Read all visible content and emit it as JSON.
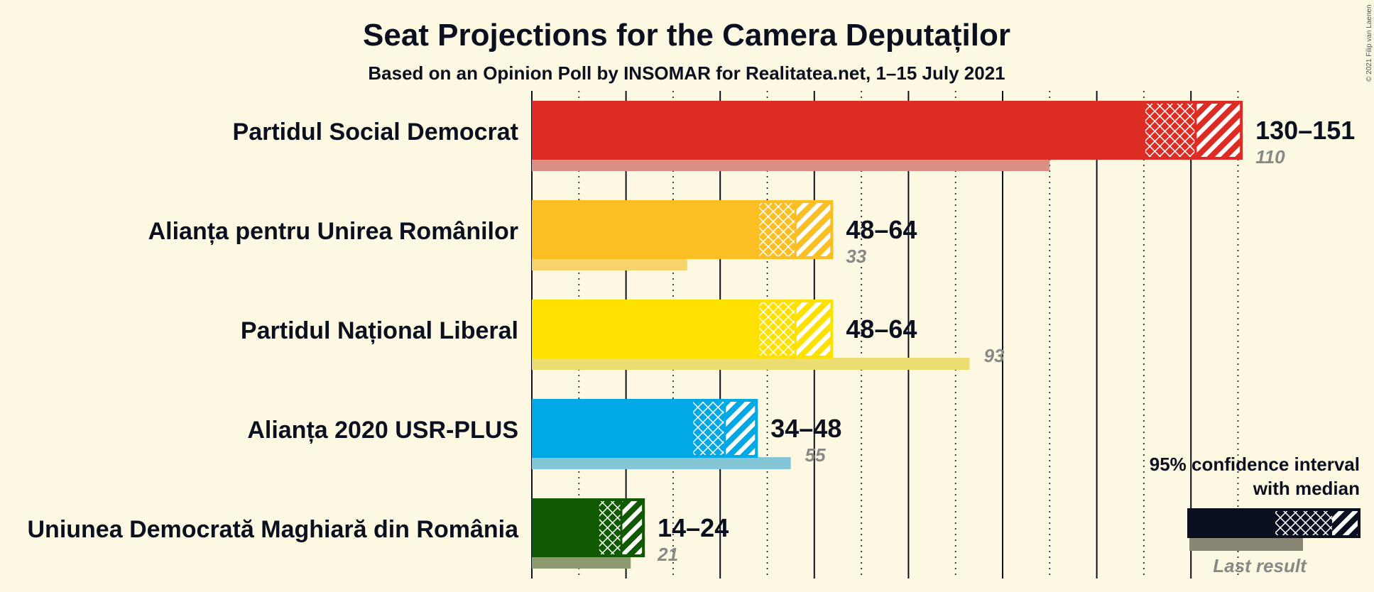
{
  "copyright": "© 2021 Filip van Laenen",
  "chart_data": {
    "type": "bar",
    "orientation": "horizontal",
    "title": "Seat Projections for the Camera Deputaților",
    "subtitle": "Based on an Opinion Poll by INSOMAR for Realitatea.net, 1–15 July 2021",
    "xlim": [
      0,
      151
    ],
    "grid": true,
    "series": [
      {
        "party": "Partidul Social Democrat",
        "low": 130,
        "median": 141,
        "high": 151,
        "range_label": "130–151",
        "last_result": 110,
        "last_label": "110",
        "color": "#dd2c24",
        "last_color": "#dc8f84"
      },
      {
        "party": "Alianța pentru Unirea Românilor",
        "low": 48,
        "median": 56,
        "high": 64,
        "range_label": "48–64",
        "last_result": 33,
        "last_label": "33",
        "color": "#fbbf24",
        "last_color": "#f7d36c"
      },
      {
        "party": "Partidul Național Liberal",
        "low": 48,
        "median": 56,
        "high": 64,
        "range_label": "48–64",
        "last_result": 93,
        "last_label": "93",
        "color": "#ffe100",
        "last_color": "#eadc70"
      },
      {
        "party": "Alianța 2020 USR-PLUS",
        "low": 34,
        "median": 41,
        "high": 48,
        "range_label": "34–48",
        "last_result": 55,
        "last_label": "55",
        "color": "#00a8e6",
        "last_color": "#85c6d6"
      },
      {
        "party": "Uniunea Democrată Maghiară din România",
        "low": 14,
        "median": 19,
        "high": 24,
        "range_label": "14–24",
        "last_result": 21,
        "last_label": "21",
        "color": "#0f5a00",
        "last_color": "#8c9a70"
      }
    ],
    "legend": {
      "line1": "95% confidence interval",
      "line2": "with median",
      "last_result": "Last result",
      "placement": "bottom-right"
    }
  }
}
